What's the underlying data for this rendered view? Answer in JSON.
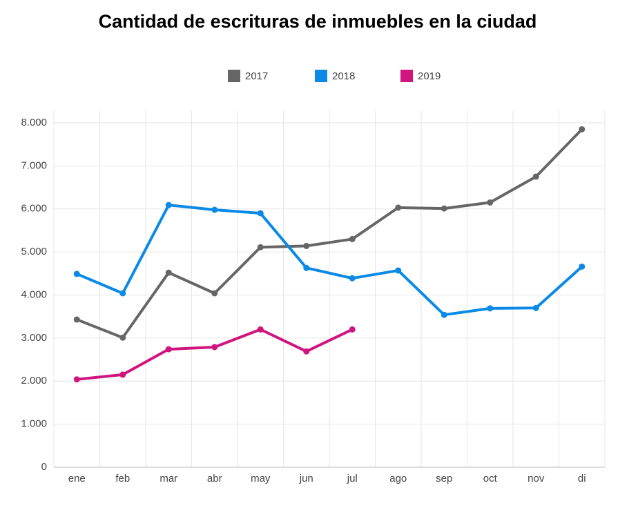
{
  "chart_data": {
    "type": "line",
    "title": "Cantidad de escrituras de inmuebles en la ciudad",
    "categories": [
      "ene",
      "feb",
      "mar",
      "abr",
      "may",
      "jun",
      "jul",
      "ago",
      "sep",
      "oct",
      "nov",
      "di"
    ],
    "series": [
      {
        "name": "2017",
        "color": "#666666",
        "values": [
          3430,
          3010,
          4520,
          4040,
          5110,
          5140,
          5300,
          6030,
          6010,
          6150,
          6750,
          7850
        ]
      },
      {
        "name": "2018",
        "color": "#0a8ae6",
        "values": [
          4490,
          4040,
          6090,
          5980,
          5900,
          4630,
          4390,
          4570,
          3540,
          3690,
          3700,
          4660
        ]
      },
      {
        "name": "2019",
        "color": "#d0157f",
        "values": [
          2040,
          2150,
          2740,
          2790,
          3200,
          2690,
          3200,
          null,
          null,
          null,
          null,
          null
        ]
      }
    ],
    "ylim": [
      0,
      8000
    ],
    "yticks": [
      0,
      {
        "value": 1000,
        "label": "1.000"
      },
      {
        "value": 2000,
        "label": "2.000"
      },
      {
        "value": 3000,
        "label": "3.000"
      },
      {
        "value": 4000,
        "label": "4.000"
      },
      {
        "value": 5000,
        "label": "5.000"
      },
      {
        "value": 6000,
        "label": "6.000"
      },
      {
        "value": 7000,
        "label": "7.000"
      },
      {
        "value": 8000,
        "label": "8.000"
      }
    ],
    "grid": true,
    "legend": "top"
  }
}
